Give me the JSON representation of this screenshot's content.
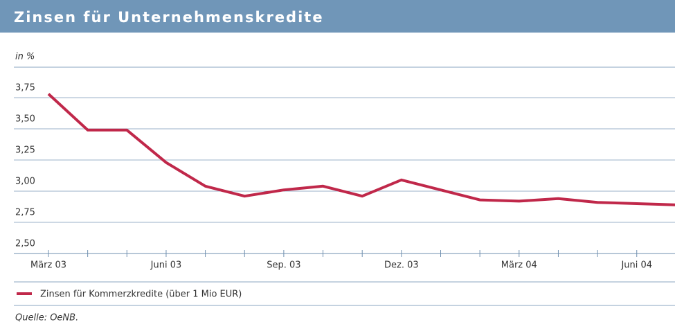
{
  "chart_data": {
    "type": "line",
    "title": "Zinsen für Unternehmenskredite",
    "y_unit": "in %",
    "categories": [
      "März 03",
      null,
      null,
      "Juni 03",
      null,
      null,
      "Sep. 03",
      null,
      null,
      "Dez. 03",
      null,
      null,
      "März 04",
      null,
      null,
      "Juni 04",
      null
    ],
    "series": [
      {
        "name": "Zinsen für Kommerzkredite (über 1 Mio EUR)",
        "color": "#c0284a",
        "values": [
          3.78,
          3.49,
          3.49,
          3.23,
          3.04,
          2.96,
          3.01,
          3.04,
          2.96,
          3.09,
          3.01,
          2.93,
          2.92,
          2.94,
          2.91,
          2.9,
          2.89
        ]
      }
    ],
    "ylim": [
      2.5,
      3.75
    ],
    "yticks": [
      {
        "value": 2.5,
        "label": "2,50"
      },
      {
        "value": 2.75,
        "label": "2,75"
      },
      {
        "value": 3.0,
        "label": "3,00"
      },
      {
        "value": 3.25,
        "label": "3,25"
      },
      {
        "value": 3.5,
        "label": "3,50"
      },
      {
        "value": 3.75,
        "label": "3,75"
      }
    ],
    "grid": true,
    "source": "Quelle: OeNB."
  }
}
